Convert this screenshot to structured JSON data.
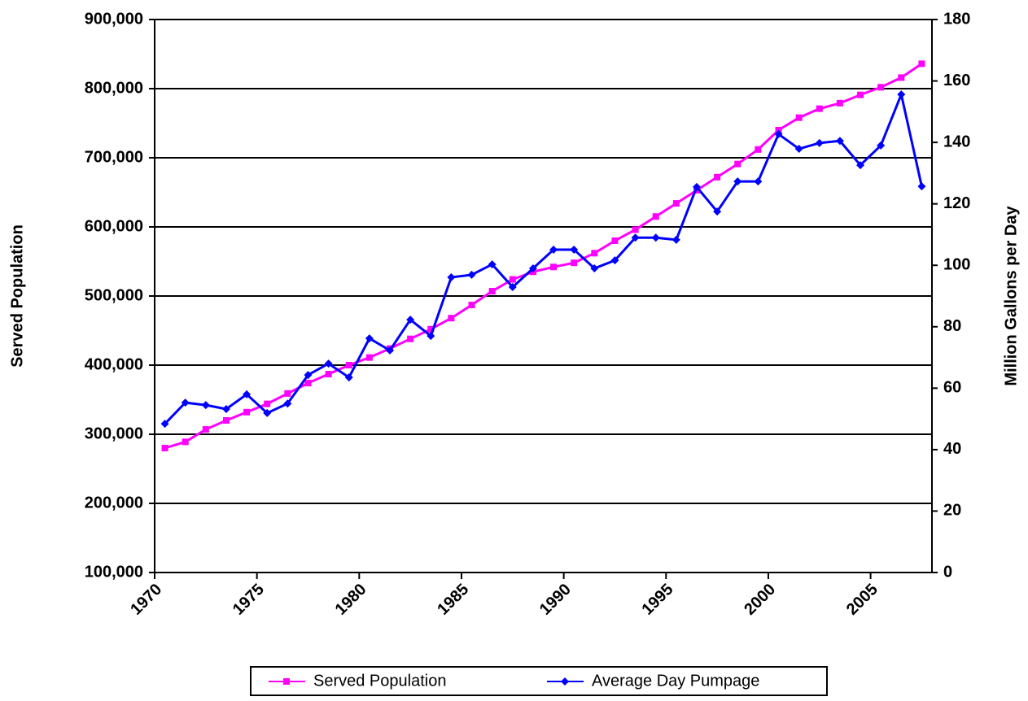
{
  "chart_data": {
    "type": "line",
    "x": [
      1970.5,
      1971.5,
      1972.5,
      1973.5,
      1974.5,
      1975.5,
      1976.5,
      1977.5,
      1978.5,
      1979.5,
      1980.5,
      1981.5,
      1982.5,
      1983.5,
      1984.5,
      1985.5,
      1986.5,
      1987.5,
      1988.5,
      1989.5,
      1990.5,
      1991.5,
      1992.5,
      1993.5,
      1994.5,
      1995.5,
      1996.5,
      1997.5,
      1998.5,
      1999.5,
      2000.5,
      2001.5,
      2002.5,
      2003.5,
      2004.5,
      2005.5,
      2006.5,
      2007.5
    ],
    "series": [
      {
        "name": "Served Population",
        "color": "#ff00ff",
        "marker": "square",
        "values": [
          280000,
          289000,
          307000,
          320000,
          332000,
          344000,
          359000,
          374000,
          387000,
          400000,
          411000,
          424000,
          438000,
          452000,
          468000,
          487000,
          507000,
          524000,
          535000,
          542000,
          548000,
          562000,
          580000,
          596000,
          615000,
          634000,
          653000,
          672000,
          691000,
          712000,
          740000,
          758000,
          771000,
          779000,
          791000,
          802000,
          816000,
          836000
        ]
      },
      {
        "name": "Average Day Pumpage",
        "color": "#0000ff",
        "marker": "diamond",
        "axis": "y2",
        "values": [
          48.4,
          55.3,
          54.5,
          53.2,
          58,
          51.9,
          55,
          64.3,
          68,
          63.5,
          76.2,
          72.3,
          82.3,
          77,
          96.1,
          96.9,
          100.3,
          92.9,
          99,
          105.1,
          105.1,
          99,
          101.6,
          109,
          109,
          108.3,
          125.5,
          117.5,
          127.3,
          127.3,
          142.7,
          137.9,
          139.8,
          140.5,
          132.6,
          139,
          155.6,
          125.7
        ]
      }
    ],
    "y_label": "Served Population",
    "y2_label": "Million Gallons per Day",
    "xlim": [
      1970,
      2008
    ],
    "xticks": [
      1970,
      1975,
      1980,
      1985,
      1990,
      1995,
      2000,
      2005
    ],
    "ylim": [
      100000,
      900000
    ],
    "yticks": [
      {
        "value": 100000,
        "label": "100,000"
      },
      {
        "value": 200000,
        "label": "200,000"
      },
      {
        "value": 300000,
        "label": "300,000"
      },
      {
        "value": 400000,
        "label": "400,000"
      },
      {
        "value": 500000,
        "label": "500,000"
      },
      {
        "value": 600000,
        "label": "600,000"
      },
      {
        "value": 700000,
        "label": "700,000"
      },
      {
        "value": 800000,
        "label": "800,000"
      },
      {
        "value": 900000,
        "label": "900,000"
      }
    ],
    "y2lim": [
      0,
      180
    ],
    "y2ticks": [
      0,
      20,
      40,
      60,
      80,
      100,
      120,
      140,
      160,
      180
    ],
    "grid": true,
    "legend": "bottom"
  }
}
